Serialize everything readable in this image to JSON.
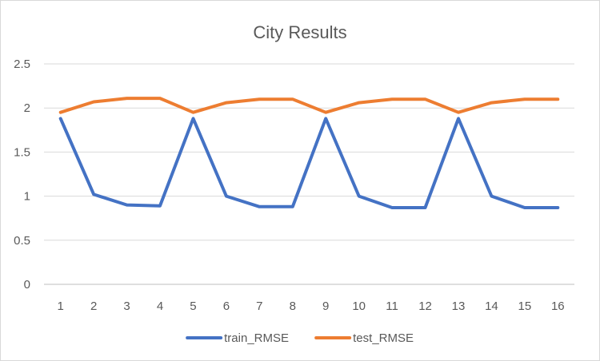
{
  "chart_data": {
    "type": "line",
    "title": "City Results",
    "xlabel": "",
    "ylabel": "",
    "x": [
      1,
      2,
      3,
      4,
      5,
      6,
      7,
      8,
      9,
      10,
      11,
      12,
      13,
      14,
      15,
      16
    ],
    "ylim": [
      0,
      2.5
    ],
    "yticks": [
      "0",
      "0.5",
      "1",
      "1.5",
      "2",
      "2.5"
    ],
    "grid": true,
    "legend_position": "bottom",
    "series": [
      {
        "name": "train_RMSE",
        "color": "#4472c4",
        "values": [
          1.88,
          1.02,
          0.9,
          0.89,
          1.88,
          1.0,
          0.88,
          0.88,
          1.88,
          1.0,
          0.87,
          0.87,
          1.88,
          1.0,
          0.87,
          0.87
        ]
      },
      {
        "name": "test_RMSE",
        "color": "#ed7d31",
        "values": [
          1.95,
          2.07,
          2.11,
          2.11,
          1.95,
          2.06,
          2.1,
          2.1,
          1.95,
          2.06,
          2.1,
          2.1,
          1.95,
          2.06,
          2.1,
          2.1
        ]
      }
    ]
  }
}
